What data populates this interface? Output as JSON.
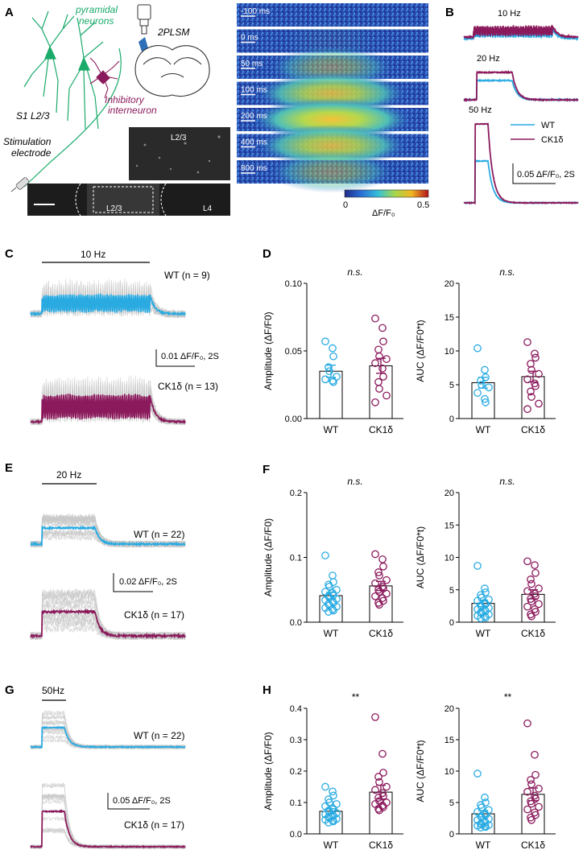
{
  "colors": {
    "wt": "#29ABE2",
    "ck": "#8B1A5C",
    "trace": "#C8C8C8",
    "neuron": "#1AAA6A",
    "dark": "#222222"
  },
  "panels": {
    "A": {
      "letter": "A",
      "pyramidal": "pyramidal neurons",
      "pyramidal_l1": "pyramidal",
      "pyramidal_l2": "neurons",
      "plsm": "2PLSM",
      "inhib_l1": "Inhibitory",
      "inhib_l2": "interneuron",
      "s1": "S1 L2/3",
      "stim_l1": "Stimulation",
      "stim_l2": "electrode",
      "l23": "L2/3",
      "l4": "L4",
      "timepoints": [
        "-100 ms",
        "0 ms",
        "50 ms",
        "100 ms",
        "200 ms",
        "400 ms",
        "800 ms"
      ],
      "activation": [
        0,
        0.05,
        0.45,
        0.85,
        1.0,
        0.85,
        0.45
      ],
      "colorbar_min": "0",
      "colorbar_max": "0.5",
      "colorbar_label": "ΔF/F₀"
    },
    "B": {
      "letter": "B",
      "hz": [
        "10 Hz",
        "20 Hz",
        "50 Hz"
      ],
      "legend_wt": "WT",
      "legend_ck": "CK1δ",
      "scale": "0.05 ΔF/F₀, 2S"
    },
    "C": {
      "letter": "C",
      "stim": "10 Hz",
      "wt": "WT (n = 9)",
      "ck": "CK1δ (n = 13)",
      "scale": "0.01 ΔF/F₀, 2S",
      "freq": 10
    },
    "E": {
      "letter": "E",
      "stim": "20 Hz",
      "wt": "WT (n = 22)",
      "ck": "CK1δ (n = 17)",
      "scale": "0.02 ΔF/F₀, 2S",
      "freq": 20
    },
    "G": {
      "letter": "G",
      "stim": "50Hz",
      "wt": "WT (n = 22)",
      "ck": "CK1δ (n = 17)",
      "scale": "0.05 ΔF/F₀, 2S",
      "freq": 50
    },
    "D": {
      "letter": "D"
    },
    "F": {
      "letter": "F"
    },
    "H": {
      "letter": "H"
    }
  },
  "chart_data": [
    {
      "type": "bar",
      "panel": "D",
      "ylabel": "Amplitude (ΔF/F0)",
      "ylim": [
        0,
        0.1
      ],
      "yticks": [
        "0.00",
        "0.05",
        "0.10"
      ],
      "tickvals": [
        0,
        0.05,
        0.1
      ],
      "categories": [
        "WT",
        "CK1δ"
      ],
      "means": [
        0.035,
        0.039
      ],
      "sem": [
        0.0045,
        0.0055
      ],
      "significance": "n.s.",
      "points": [
        [
          0.057,
          0.052,
          0.046,
          0.038,
          0.035,
          0.031,
          0.029,
          0.028,
          0.027
        ],
        [
          0.074,
          0.067,
          0.057,
          0.051,
          0.046,
          0.044,
          0.041,
          0.037,
          0.031,
          0.027,
          0.022,
          0.017,
          0.012
        ]
      ]
    },
    {
      "type": "bar",
      "panel": "D",
      "ylabel": "AUC (ΔF/F0*t)",
      "ylim": [
        0,
        20
      ],
      "yticks": [
        "0",
        "5",
        "10",
        "15",
        "20"
      ],
      "tickvals": [
        0,
        5,
        10,
        15,
        20
      ],
      "categories": [
        "WT",
        "CK1δ"
      ],
      "means": [
        5.3,
        6.2
      ],
      "sem": [
        0.8,
        0.8
      ],
      "significance": "n.s.",
      "points": [
        [
          10.4,
          7.2,
          6.1,
          5.6,
          5.0,
          4.6,
          3.8,
          2.9,
          2.4
        ],
        [
          11.3,
          9.6,
          9.0,
          8.1,
          7.2,
          6.6,
          5.8,
          5.2,
          4.8,
          4.0,
          3.2,
          2.2,
          1.4
        ]
      ]
    },
    {
      "type": "bar",
      "panel": "F",
      "ylabel": "Amplitude (ΔF/F0)",
      "ylim": [
        0,
        0.2
      ],
      "yticks": [
        "0.0",
        "0.1",
        "0.2"
      ],
      "tickvals": [
        0,
        0.1,
        0.2
      ],
      "categories": [
        "WT",
        "CK1δ"
      ],
      "means": [
        0.041,
        0.056
      ],
      "sem": [
        0.005,
        0.007
      ],
      "significance": "n.s.",
      "points": [
        [
          0.103,
          0.072,
          0.062,
          0.058,
          0.055,
          0.05,
          0.047,
          0.045,
          0.042,
          0.04,
          0.038,
          0.036,
          0.034,
          0.032,
          0.03,
          0.028,
          0.026,
          0.024,
          0.022,
          0.02,
          0.018,
          0.016
        ],
        [
          0.105,
          0.097,
          0.086,
          0.077,
          0.072,
          0.065,
          0.06,
          0.055,
          0.052,
          0.05,
          0.047,
          0.044,
          0.04,
          0.037,
          0.033,
          0.03,
          0.027
        ]
      ]
    },
    {
      "type": "bar",
      "panel": "F",
      "ylabel": "AUC (ΔF/F0*t)",
      "ylim": [
        0,
        20
      ],
      "yticks": [
        "0",
        "5",
        "10",
        "15",
        "20"
      ],
      "tickvals": [
        0,
        5,
        10,
        15,
        20
      ],
      "categories": [
        "WT",
        "CK1δ"
      ],
      "means": [
        2.9,
        4.3
      ],
      "sem": [
        0.5,
        0.7
      ],
      "significance": "n.s.",
      "points": [
        [
          8.7,
          5.2,
          4.6,
          4.2,
          3.8,
          3.5,
          3.3,
          3.0,
          2.8,
          2.6,
          2.4,
          2.2,
          2.0,
          1.9,
          1.7,
          1.5,
          1.4,
          1.2,
          1.0,
          0.9,
          0.7,
          0.6
        ],
        [
          9.4,
          8.8,
          7.6,
          6.6,
          5.9,
          5.2,
          4.8,
          4.4,
          4.0,
          3.6,
          3.2,
          2.8,
          2.4,
          2.0,
          1.6,
          1.2,
          0.9
        ]
      ]
    },
    {
      "type": "bar",
      "panel": "H",
      "ylabel": "Amplitude (ΔF/F0)",
      "ylim": [
        0,
        0.4
      ],
      "yticks": [
        "0.0",
        "0.1",
        "0.2",
        "0.3",
        "0.4"
      ],
      "tickvals": [
        0,
        0.1,
        0.2,
        0.3,
        0.4
      ],
      "categories": [
        "WT",
        "CK1δ"
      ],
      "means": [
        0.072,
        0.133
      ],
      "sem": [
        0.008,
        0.022
      ],
      "significance": "**",
      "points": [
        [
          0.15,
          0.135,
          0.122,
          0.11,
          0.1,
          0.095,
          0.088,
          0.082,
          0.078,
          0.074,
          0.07,
          0.066,
          0.062,
          0.06,
          0.057,
          0.054,
          0.051,
          0.048,
          0.045,
          0.042,
          0.04,
          0.036
        ],
        [
          0.372,
          0.255,
          0.195,
          0.182,
          0.165,
          0.15,
          0.14,
          0.13,
          0.12,
          0.115,
          0.105,
          0.1,
          0.095,
          0.09,
          0.085,
          0.08,
          0.075
        ]
      ]
    },
    {
      "type": "bar",
      "panel": "H",
      "ylabel": "AUC (ΔF/F0*t)",
      "ylim": [
        0,
        20
      ],
      "yticks": [
        "0",
        "5",
        "10",
        "15",
        "20"
      ],
      "tickvals": [
        0,
        5,
        10,
        15,
        20
      ],
      "categories": [
        "WT",
        "CK1δ"
      ],
      "means": [
        3.2,
        6.3
      ],
      "sem": [
        0.5,
        1.0
      ],
      "significance": "**",
      "points": [
        [
          9.6,
          5.8,
          5.0,
          4.6,
          4.2,
          3.8,
          3.5,
          3.3,
          3.0,
          2.8,
          2.6,
          2.4,
          2.2,
          2.0,
          1.8,
          1.6,
          1.5,
          1.4,
          1.3,
          1.2,
          1.1,
          1.0
        ],
        [
          17.6,
          12.6,
          9.4,
          8.6,
          7.9,
          7.2,
          6.7,
          6.1,
          5.6,
          5.2,
          4.8,
          4.3,
          3.9,
          3.4,
          3.0,
          2.6,
          2.2
        ]
      ]
    }
  ]
}
